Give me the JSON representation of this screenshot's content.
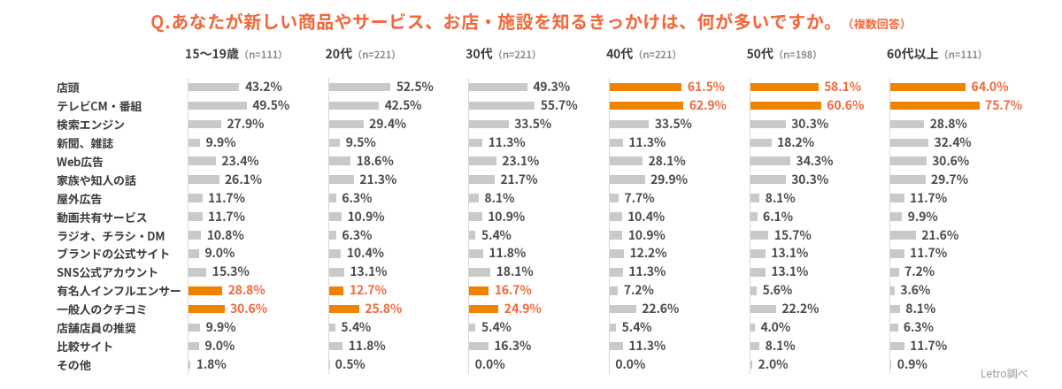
{
  "title": {
    "main": "Q.あなたが新しい商品やサービス、お店・施設を知るきっかけは、何が多いですか。",
    "note": "（複数回答）"
  },
  "footer": {
    "source": "Letro調べ"
  },
  "colors": {
    "accent_text": "#f1683a",
    "bar_highlight": "#f08300",
    "bar_default": "#c9c9c9",
    "text_dark": "#3c3c3c",
    "value_dark": "#4b4b4b",
    "header_sub_gray": "#8a8a8a",
    "axis_gray": "#d8d8d8",
    "source_gray": "#9a9a9a"
  },
  "chart_data": {
    "type": "bar",
    "orientation": "horizontal",
    "unit": "%",
    "title": "Q.あなたが新しい商品やサービス、お店・施設を知るきっかけは、何が多いですか。（複数回答）",
    "categories": [
      "店頭",
      "テレビCM・番組",
      "検索エンジン",
      "新聞、雑誌",
      "Web広告",
      "家族や知人の話",
      "屋外広告",
      "動画共有サービス",
      "ラジオ、チラシ・DM",
      "ブランドの公式サイト",
      "SNS公式アカウント",
      "有名人インフルエンサー",
      "一般人のクチコミ",
      "店舗店員の推奨",
      "比較サイト",
      "その他"
    ],
    "series": [
      {
        "name": "15〜19歳",
        "n_label": "（n=111）",
        "values": [
          43.2,
          49.5,
          27.9,
          9.9,
          23.4,
          26.1,
          11.7,
          11.7,
          10.8,
          9.0,
          15.3,
          28.8,
          30.6,
          9.9,
          9.0,
          1.8
        ],
        "highlighted_rows": [
          11,
          12
        ]
      },
      {
        "name": "20代",
        "n_label": "（n=221）",
        "values": [
          52.5,
          42.5,
          29.4,
          9.5,
          18.6,
          21.3,
          6.3,
          10.9,
          6.3,
          10.4,
          13.1,
          12.7,
          25.8,
          5.4,
          11.8,
          0.5
        ],
        "highlighted_rows": [
          11,
          12
        ]
      },
      {
        "name": "30代",
        "n_label": "（n=221）",
        "values": [
          49.3,
          55.7,
          33.5,
          11.3,
          23.1,
          21.7,
          8.1,
          10.9,
          5.4,
          11.8,
          18.1,
          16.7,
          24.9,
          5.4,
          16.3,
          0.0
        ],
        "highlighted_rows": [
          11,
          12
        ]
      },
      {
        "name": "40代",
        "n_label": "（n=221）",
        "values": [
          61.5,
          62.9,
          33.5,
          11.3,
          28.1,
          29.9,
          7.7,
          10.4,
          10.9,
          12.2,
          11.3,
          7.2,
          22.6,
          5.4,
          11.3,
          0.0
        ],
        "highlighted_rows": [
          0,
          1
        ]
      },
      {
        "name": "50代",
        "n_label": "（n=198）",
        "values": [
          58.1,
          60.6,
          30.3,
          18.2,
          34.3,
          30.3,
          8.1,
          6.1,
          15.7,
          13.1,
          13.1,
          5.6,
          22.2,
          4.0,
          8.1,
          2.0
        ],
        "highlighted_rows": [
          0,
          1
        ]
      },
      {
        "name": "60代以上",
        "n_label": "（n=111）",
        "values": [
          64.0,
          75.7,
          28.8,
          32.4,
          30.6,
          29.7,
          11.7,
          9.9,
          21.6,
          11.7,
          7.2,
          3.6,
          8.1,
          6.3,
          11.7,
          0.9
        ],
        "highlighted_rows": [
          0,
          1
        ]
      }
    ],
    "value_suffix": "%",
    "xlim": [
      0,
      100
    ],
    "grid": false,
    "legend": false
  }
}
